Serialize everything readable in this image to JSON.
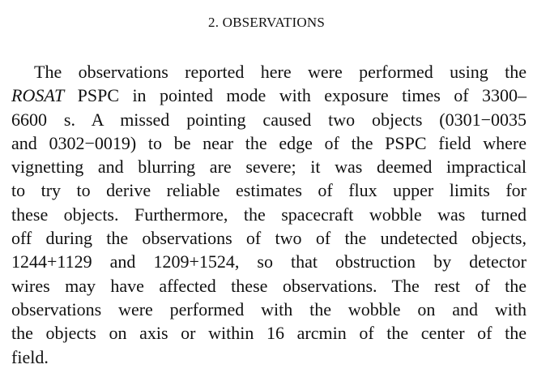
{
  "section": {
    "heading": "2. OBSERVATIONS"
  },
  "paragraph": {
    "lines": [
      {
        "segments": [
          {
            "text": "The observations reported here were performed using the"
          }
        ]
      },
      {
        "segments": [
          {
            "text": "ROSAT",
            "italic": true
          },
          {
            "text": " PSPC in pointed mode with exposure times of 3300–"
          }
        ]
      },
      {
        "segments": [
          {
            "text": "6600 s. A missed pointing caused two objects (0301−0035"
          }
        ]
      },
      {
        "segments": [
          {
            "text": "and 0302−0019) to be near the edge of the PSPC field where"
          }
        ]
      },
      {
        "segments": [
          {
            "text": "vignetting and blurring are severe; it was deemed impractical"
          }
        ]
      },
      {
        "segments": [
          {
            "text": "to try to derive reliable estimates of flux upper limits for"
          }
        ]
      },
      {
        "segments": [
          {
            "text": "these objects. Furthermore, the spacecraft wobble was turned"
          }
        ]
      },
      {
        "segments": [
          {
            "text": "off during the observations of two of the undetected objects,"
          }
        ]
      },
      {
        "segments": [
          {
            "text": "1244+1129 and 1209+1524, so that obstruction by detector"
          }
        ]
      },
      {
        "segments": [
          {
            "text": "wires may have affected these observations. The rest of the"
          }
        ]
      },
      {
        "segments": [
          {
            "text": "observations were performed with the wobble on and with"
          }
        ]
      },
      {
        "segments": [
          {
            "text": "the objects on axis or within 16 arcmin of the center of the"
          }
        ]
      },
      {
        "segments": [
          {
            "text": "field."
          }
        ]
      }
    ]
  }
}
